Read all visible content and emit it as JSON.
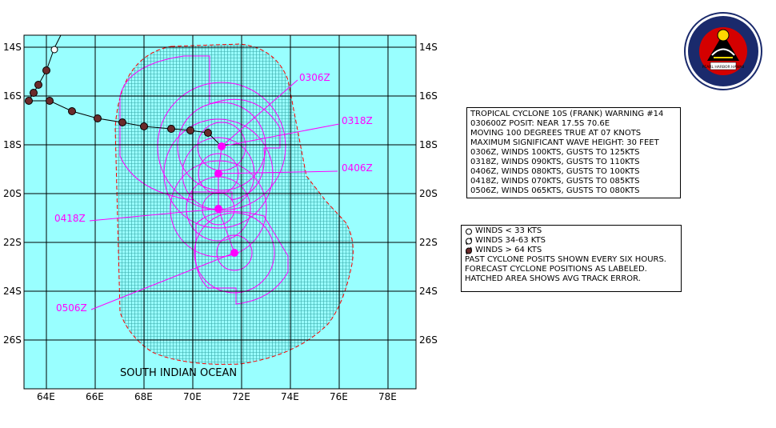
{
  "map": {
    "lat_labels": [
      "14S",
      "16S",
      "18S",
      "20S",
      "22S",
      "24S",
      "26S"
    ],
    "lon_labels": [
      "64E",
      "66E",
      "68E",
      "70E",
      "72E",
      "74E",
      "76E",
      "78E"
    ],
    "region_label": "SOUTH INDIAN OCEAN",
    "colors": {
      "ocean": "#99ffff",
      "forecast": "#ff00ff",
      "error_swath": "#ff0000",
      "grid": "#000000"
    }
  },
  "forecast_labels": [
    "0306Z",
    "0318Z",
    "0406Z",
    "0418Z",
    "0506Z"
  ],
  "warning": {
    "lines": [
      "TROPICAL CYCLONE 10S (FRANK) WARNING #14",
      "030600Z POSIT: NEAR 17.5S 70.6E",
      "MOVING 100 DEGREES TRUE AT 07 KNOTS",
      "MAXIMUM SIGNIFICANT WAVE HEIGHT: 30 FEET",
      "0306Z, WINDS 100KTS, GUSTS TO 125KTS",
      "0318Z, WINDS 090KTS, GUSTS TO 110KTS",
      "0406Z, WINDS 080KTS, GUSTS TO 100KTS",
      "0418Z, WINDS 070KTS, GUSTS TO 085KTS",
      "0506Z, WINDS 065KTS, GUSTS TO 080KTS"
    ]
  },
  "legend": {
    "items": [
      {
        "icon": "open-circle-icon",
        "label": "WINDS < 33 KTS"
      },
      {
        "icon": "open-cyclone-icon",
        "label": "WINDS 34-63  KTS"
      },
      {
        "icon": "filled-cyclone-icon",
        "label": "WINDS > 64 KTS"
      }
    ],
    "notes": [
      "PAST CYCLONE POSITS SHOWN EVERY SIX HOURS.",
      "FORECAST CYCLONE POSITIONS AS LABELED.",
      "HATCHED AREA SHOWS AVG TRACK ERROR."
    ]
  },
  "seal": {
    "top_text": "NAVAL PACIFIC METEOROLOGY & OCEANOGRAPHY CENTER",
    "bottom_text": "JOINT TYPHOON WARNING CENTER",
    "banner": "PEARL HARBOR HAWAII",
    "icon": "navy-seal-icon"
  }
}
